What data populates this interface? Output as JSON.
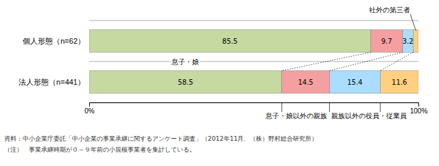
{
  "chart_data": {
    "type": "bar",
    "orientation": "horizontal",
    "stacked": true,
    "data_labels": true,
    "grid": false,
    "categories": [
      "個人形態（n=62）",
      "法人形態（n=441）"
    ],
    "series": [
      {
        "name": "息子・娘",
        "color": "#c5d9a0",
        "values": [
          85.5,
          58.5
        ]
      },
      {
        "name": "息子・娘以外の親族",
        "color": "#f4a0a0",
        "values": [
          9.7,
          14.5
        ]
      },
      {
        "name": "親族以外の役員・従業員",
        "color": "#aaddff",
        "values": [
          3.2,
          15.4
        ]
      },
      {
        "name": "社外の第三者",
        "color": "#ffd080",
        "values": [
          1.6,
          11.6
        ],
        "value_labels": [
          null,
          "11.6"
        ]
      }
    ],
    "xlim": [
      0,
      100
    ],
    "xticks": [
      {
        "value": 0,
        "label": "0%"
      },
      {
        "value": 100,
        "label": "100%"
      }
    ],
    "notes": [
      "資料：中小企業庁委託「中小企業の事業承継に関するアンケート調査」（2012年11月、（株）野村総合研究所）",
      "（注）　事業承継時期が０～９年前の小規模事業者を集計している。"
    ]
  }
}
